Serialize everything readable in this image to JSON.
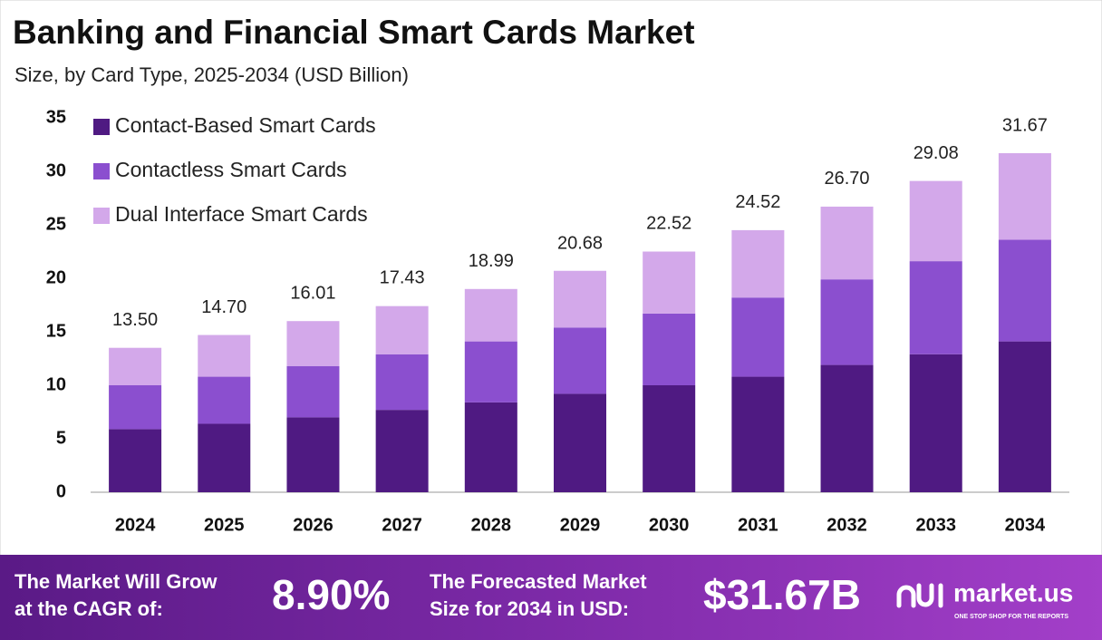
{
  "chart_data": {
    "type": "stacked-bar",
    "title": "Banking and Financial Smart Cards Market",
    "subtitle": "Size, by Card Type, 2025-2034 (USD Billion)",
    "categories": [
      "2024",
      "2025",
      "2026",
      "2027",
      "2028",
      "2029",
      "2030",
      "2031",
      "2032",
      "2033",
      "2034"
    ],
    "series": [
      {
        "name": "Contact-Based Smart Cards",
        "color": "#4f1a82",
        "values": [
          5.9,
          6.4,
          7.0,
          7.7,
          8.4,
          9.2,
          10.0,
          10.8,
          11.9,
          12.9,
          14.1
        ]
      },
      {
        "name": "Contactless Smart Cards",
        "color": "#8b4fcf",
        "values": [
          4.1,
          4.4,
          4.8,
          5.2,
          5.7,
          6.2,
          6.7,
          7.4,
          8.0,
          8.7,
          9.5
        ]
      },
      {
        "name": "Dual Interface Smart Cards",
        "color": "#d3a8ea",
        "values": [
          3.5,
          3.9,
          4.2,
          4.5,
          4.9,
          5.3,
          5.8,
          6.3,
          6.8,
          7.5,
          8.1
        ]
      }
    ],
    "totals": [
      13.5,
      14.7,
      16.01,
      17.43,
      18.99,
      20.68,
      22.52,
      24.52,
      26.7,
      29.08,
      31.67
    ],
    "total_labels": [
      "13.50",
      "14.70",
      "16.01",
      "17.43",
      "18.99",
      "20.68",
      "22.52",
      "24.52",
      "26.70",
      "29.08",
      "31.67"
    ],
    "ylim": [
      0,
      35
    ],
    "yticks": [
      0,
      5,
      10,
      15,
      20,
      25,
      30,
      35
    ],
    "grid": false,
    "legend": "top-left"
  },
  "footer": {
    "cagr_label": [
      "The Market Will Grow",
      "at the CAGR of:"
    ],
    "cagr": "8.90%",
    "forecast_label": [
      "The Forecasted Market",
      "Size for 2034 in USD:"
    ],
    "forecast": "$31.67B",
    "brand": "market.us",
    "tagline": "ONE STOP SHOP FOR THE REPORTS"
  }
}
